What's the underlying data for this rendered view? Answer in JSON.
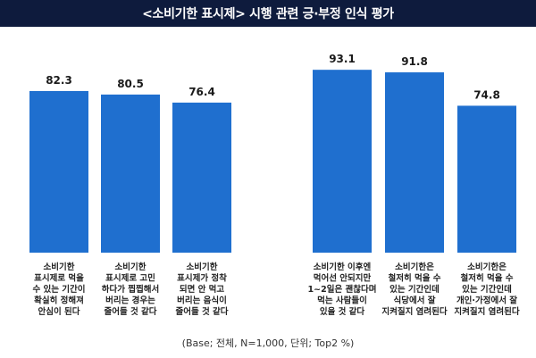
{
  "title": "<소비기한 표시제> 시행 관련 긍·부정 인식 평가",
  "footer": "(Base; 전체, N=1,000, 단위; Top2 %)",
  "colors": {
    "title_bg": "#0e1b3d",
    "bar": "#1f6fcf"
  },
  "chart_data": [
    {
      "type": "bar",
      "title": "",
      "xlabel": "",
      "ylabel": "",
      "ylim": [
        0,
        100
      ],
      "grid": false,
      "categories": [
        [
          "소비기한",
          "표시제로 먹을",
          "수 있는 기간이",
          "확실히 정해져",
          "안심이 된다"
        ],
        [
          "소비기한",
          "표시제로 고민",
          "하다가 찝찝해서",
          "버리는 경우는",
          "줄어들 것 같다"
        ],
        [
          "소비기한",
          "표시제가 정착",
          "되면 안 먹고",
          "버리는 음식이",
          "줄어들 것 같다"
        ]
      ],
      "values": [
        82.3,
        80.5,
        76.4
      ],
      "value_labels": [
        "82.3",
        "80.5",
        "76.4"
      ]
    },
    {
      "type": "bar",
      "title": "",
      "xlabel": "",
      "ylabel": "",
      "ylim": [
        0,
        100
      ],
      "grid": false,
      "categories": [
        [
          "소비기한 이후엔",
          "먹어선 안되지만",
          "1~2일은 괜찮다며",
          "먹는 사람들이",
          "있을 것 같다"
        ],
        [
          "소비기한은",
          "철저히 먹을 수",
          "있는 기간인데",
          "식당에서 잘",
          "지켜질지 염려된다"
        ],
        [
          "소비기한은",
          "철저히 먹을 수",
          "있는 기간인데",
          "개인·가정에서 잘",
          "지켜질지 염려된다"
        ]
      ],
      "values": [
        93.1,
        91.8,
        74.8
      ],
      "value_labels": [
        "93.1",
        "91.8",
        "74.8"
      ]
    }
  ]
}
